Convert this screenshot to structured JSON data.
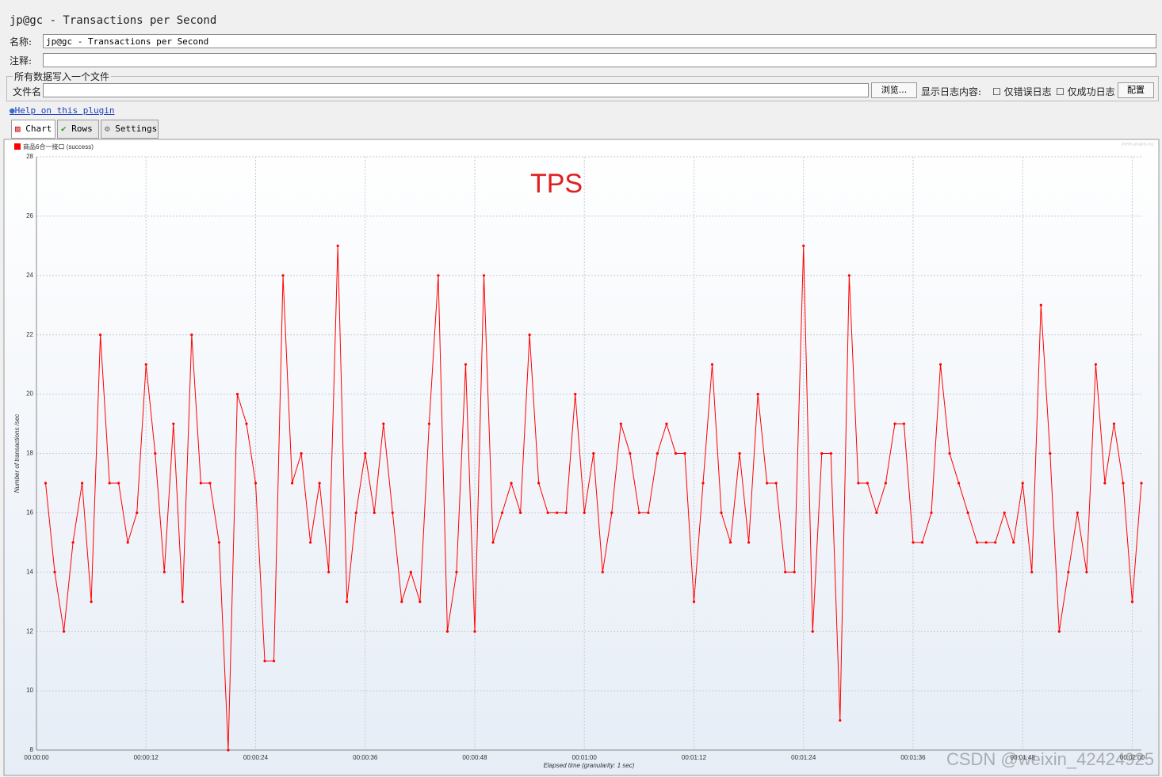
{
  "header": {
    "title": "jp@gc - Transactions per Second"
  },
  "form": {
    "name_label": "名称:",
    "name_value": "jp@gc - Transactions per Second",
    "comment_label": "注释:",
    "file_group": "所有数据写入一个文件",
    "file_label": "文件名",
    "browse": "浏览...",
    "log_label": "显示日志内容:",
    "errors_only": "仅错误日志",
    "success_only": "仅成功日志",
    "configure": "配置"
  },
  "help": "Help on this plugin",
  "tabs": [
    "Chart",
    "Rows",
    "Settings"
  ],
  "chart_data": {
    "type": "line",
    "annotation": "TPS",
    "credit": "jmeter-plugins.org",
    "watermark": "CSDN @weixin_42424925",
    "x_label": "Elapsed time (granularity: 1 sec)",
    "y_label": "Number of transactions /sec",
    "x": [
      1,
      2,
      3,
      4,
      5,
      6,
      7,
      8,
      9,
      10,
      11,
      12,
      13,
      14,
      15,
      16,
      17,
      18,
      19,
      20,
      21,
      22,
      23,
      24,
      25,
      26,
      27,
      28,
      29,
      30,
      31,
      32,
      33,
      34,
      35,
      36,
      37,
      38,
      39,
      40,
      41,
      42,
      43,
      44,
      45,
      46,
      47,
      48,
      49,
      50,
      51,
      52,
      53,
      54,
      55,
      56,
      57,
      58,
      59,
      60,
      61,
      62,
      63,
      64,
      65,
      66,
      67,
      68,
      69,
      70,
      71,
      72,
      73,
      74,
      75,
      76,
      77,
      78,
      79,
      80,
      81,
      82,
      83,
      84,
      85,
      86,
      87,
      88,
      89,
      90,
      91,
      92,
      93,
      94,
      95,
      96,
      97,
      98,
      99,
      100,
      101,
      102,
      103,
      104,
      105,
      106,
      107,
      108,
      109,
      110,
      111,
      112,
      113,
      114,
      115,
      116,
      117,
      118,
      119,
      120,
      121
    ],
    "series": [
      {
        "name": "商品6合一接口 (success)",
        "color": "#ff0000",
        "values": [
          17,
          14,
          12,
          15,
          17,
          13,
          22,
          17,
          17,
          15,
          16,
          21,
          18,
          14,
          19,
          13,
          22,
          17,
          17,
          15,
          8,
          20,
          19,
          17,
          11,
          11,
          24,
          17,
          18,
          15,
          17,
          14,
          25,
          13,
          16,
          18,
          16,
          19,
          16,
          13,
          14,
          13,
          19,
          24,
          12,
          14,
          21,
          12,
          24,
          15,
          16,
          17,
          16,
          22,
          17,
          16,
          16,
          16,
          20,
          16,
          18,
          14,
          16,
          19,
          18,
          16,
          16,
          18,
          19,
          18,
          18,
          13,
          17,
          21,
          16,
          15,
          18,
          15,
          20,
          17,
          17,
          14,
          14,
          25,
          12,
          18,
          18,
          9,
          24,
          17,
          17,
          16,
          17,
          19,
          19,
          15,
          15,
          16,
          21,
          18,
          17,
          16,
          15,
          15,
          15,
          16,
          15,
          17,
          14,
          23,
          18,
          12,
          14,
          16,
          14,
          21,
          17,
          19,
          17,
          13,
          17
        ]
      }
    ],
    "xlim": [
      0,
      121
    ],
    "ylim": [
      8,
      28
    ],
    "xticks": [
      {
        "value": 0,
        "label": "00:00:00"
      },
      {
        "value": 12,
        "label": "00:00:12"
      },
      {
        "value": 24,
        "label": "00:00:24"
      },
      {
        "value": 36,
        "label": "00:00:36"
      },
      {
        "value": 48,
        "label": "00:00:48"
      },
      {
        "value": 60,
        "label": "00:01:00"
      },
      {
        "value": 72,
        "label": "00:01:12"
      },
      {
        "value": 84,
        "label": "00:01:24"
      },
      {
        "value": 96,
        "label": "00:01:36"
      },
      {
        "value": 108,
        "label": "00:01:48"
      },
      {
        "value": 120,
        "label": "00:02:00"
      }
    ],
    "yticks": [
      8,
      10,
      12,
      14,
      16,
      18,
      20,
      22,
      24,
      26,
      28
    ],
    "grid": true
  }
}
